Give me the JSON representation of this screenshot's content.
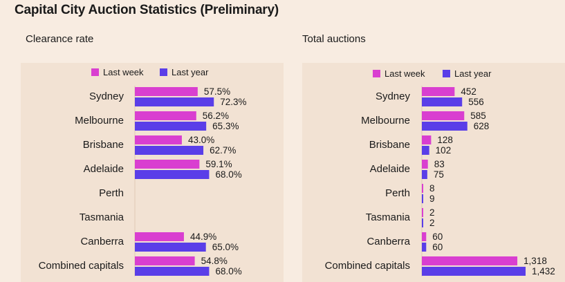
{
  "title": "Capital City Auction Statistics (Preliminary)",
  "colors": {
    "last_week": "#d93fd0",
    "last_year": "#5a3ee8",
    "background": "#f8ece1",
    "panel": "#f2e2d3"
  },
  "chart_data": [
    {
      "type": "bar",
      "orientation": "horizontal",
      "title": "Clearance rate",
      "unit": "%",
      "categories": [
        "Sydney",
        "Melbourne",
        "Brisbane",
        "Adelaide",
        "Perth",
        "Tasmania",
        "Canberra",
        "Combined capitals"
      ],
      "series": [
        {
          "name": "Last week",
          "values": [
            57.5,
            56.2,
            43.0,
            59.1,
            null,
            null,
            44.9,
            54.8
          ],
          "labels": [
            "57.5%",
            "56.2%",
            "43.0%",
            "59.1%",
            "",
            "",
            "44.9%",
            "54.8%"
          ]
        },
        {
          "name": "Last year",
          "values": [
            72.3,
            65.3,
            62.7,
            68.0,
            null,
            null,
            65.0,
            68.0
          ],
          "labels": [
            "72.3%",
            "65.3%",
            "62.7%",
            "68.0%",
            "",
            "",
            "65.0%",
            "68.0%"
          ]
        }
      ],
      "xlim": [
        0,
        100
      ],
      "legend": "top"
    },
    {
      "type": "bar",
      "orientation": "horizontal",
      "title": "Total auctions",
      "categories": [
        "Sydney",
        "Melbourne",
        "Brisbane",
        "Adelaide",
        "Perth",
        "Tasmania",
        "Canberra",
        "Combined capitals"
      ],
      "series": [
        {
          "name": "Last week",
          "values": [
            452,
            585,
            128,
            83,
            8,
            2,
            60,
            1318
          ],
          "labels": [
            "452",
            "585",
            "128",
            "83",
            "8",
            "2",
            "60",
            "1,318"
          ]
        },
        {
          "name": "Last year",
          "values": [
            556,
            628,
            102,
            75,
            9,
            2,
            60,
            1432
          ],
          "labels": [
            "556",
            "628",
            "102",
            "75",
            "9",
            "2",
            "60",
            "1,432"
          ]
        }
      ],
      "xlim": [
        0,
        1432
      ],
      "legend": "top"
    }
  ]
}
